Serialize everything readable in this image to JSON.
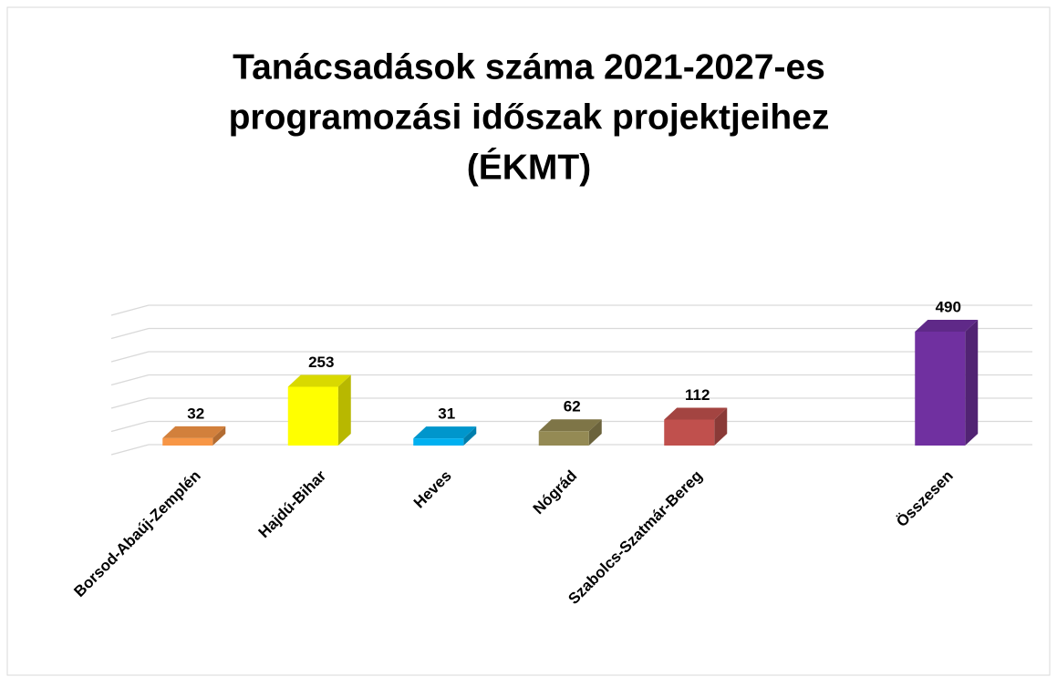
{
  "chart_data": {
    "type": "bar3d",
    "title": [
      "Tanácsadások száma 2021-2027-es",
      "programozási időszak projektjeihez",
      "(ÉKMT)"
    ],
    "categories": [
      "Borsod-Abaúj-Zemplén",
      "Hajdú-Bihar",
      "Heves",
      "Nógrád",
      "Szabolcs-Szatmár-Bereg",
      null,
      "Összesen"
    ],
    "values": [
      32,
      253,
      31,
      62,
      112,
      null,
      490
    ],
    "colors": [
      "#f79646",
      "#ffff00",
      "#00b0f0",
      "#948a54",
      "#c0504d",
      null,
      "#7030a0"
    ],
    "ylim": [
      0,
      600
    ],
    "yticks": [
      0,
      100,
      200,
      300,
      400,
      500,
      600
    ],
    "grid": true
  }
}
